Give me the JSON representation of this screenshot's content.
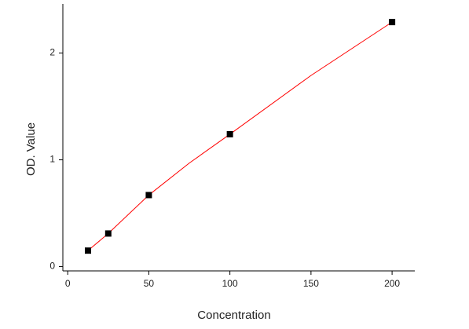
{
  "chart_data": {
    "type": "scatter",
    "x_label": "Concentration",
    "y_label": "OD. Value",
    "xlim": [
      -3,
      214
    ],
    "xticks": [
      0,
      50,
      100,
      150,
      200
    ],
    "ylim": [
      -0.04,
      2.46
    ],
    "yticks": [
      0,
      1,
      2
    ],
    "points": {
      "color": "#000000",
      "x": [
        12.5,
        25,
        50,
        100,
        200
      ],
      "values": [
        0.15,
        0.31,
        0.67,
        1.24,
        2.29
      ]
    },
    "fit": {
      "color": "#ff0000",
      "x": [
        12.5,
        25,
        50,
        75,
        100,
        150,
        200
      ],
      "values": [
        0.15,
        0.31,
        0.67,
        0.97,
        1.24,
        1.79,
        2.29
      ]
    }
  }
}
